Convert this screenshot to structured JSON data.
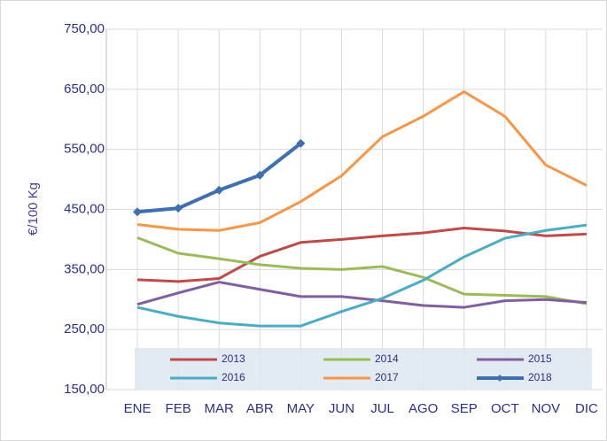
{
  "chart_data": {
    "type": "line",
    "y_label": "€/100 Kg",
    "categories": [
      "ENE",
      "FEB",
      "MAR",
      "ABR",
      "MAY",
      "JUN",
      "JUL",
      "AGO",
      "SEP",
      "OCT",
      "NOV",
      "DIC"
    ],
    "series": [
      {
        "name": "2013",
        "color": "#be4b48",
        "values": [
          333,
          330,
          335,
          372,
          395,
          400,
          406,
          411,
          419,
          414,
          406,
          409
        ]
      },
      {
        "name": "2014",
        "color": "#9bbb59",
        "values": [
          403,
          377,
          368,
          358,
          352,
          350,
          355,
          337,
          309,
          307,
          305,
          293
        ]
      },
      {
        "name": "2015",
        "color": "#7f5fa0",
        "values": [
          292,
          311,
          329,
          317,
          305,
          305,
          298,
          290,
          287,
          298,
          300,
          295
        ]
      },
      {
        "name": "2016",
        "color": "#4bacc6",
        "values": [
          287,
          272,
          261,
          256,
          256,
          280,
          302,
          332,
          371,
          402,
          415,
          424
        ]
      },
      {
        "name": "2017",
        "color": "#f79646",
        "values": [
          425,
          417,
          415,
          428,
          463,
          506,
          571,
          605,
          646,
          605,
          524,
          490
        ]
      },
      {
        "name": "2018",
        "color": "#3f6fae",
        "marker": "diamond",
        "values": [
          446,
          452,
          482,
          507,
          560,
          null,
          null,
          null,
          null,
          null,
          null,
          null
        ]
      }
    ],
    "ylim": [
      150,
      750
    ],
    "yticks": [
      {
        "value": 150,
        "label": "150,00"
      },
      {
        "value": 250,
        "label": "250,00"
      },
      {
        "value": 350,
        "label": "350,00"
      },
      {
        "value": 450,
        "label": "450,00"
      },
      {
        "value": 550,
        "label": "550,00"
      },
      {
        "value": 650,
        "label": "650,00"
      },
      {
        "value": 750,
        "label": "750,00"
      }
    ],
    "grid": true,
    "legend": "bottom"
  }
}
